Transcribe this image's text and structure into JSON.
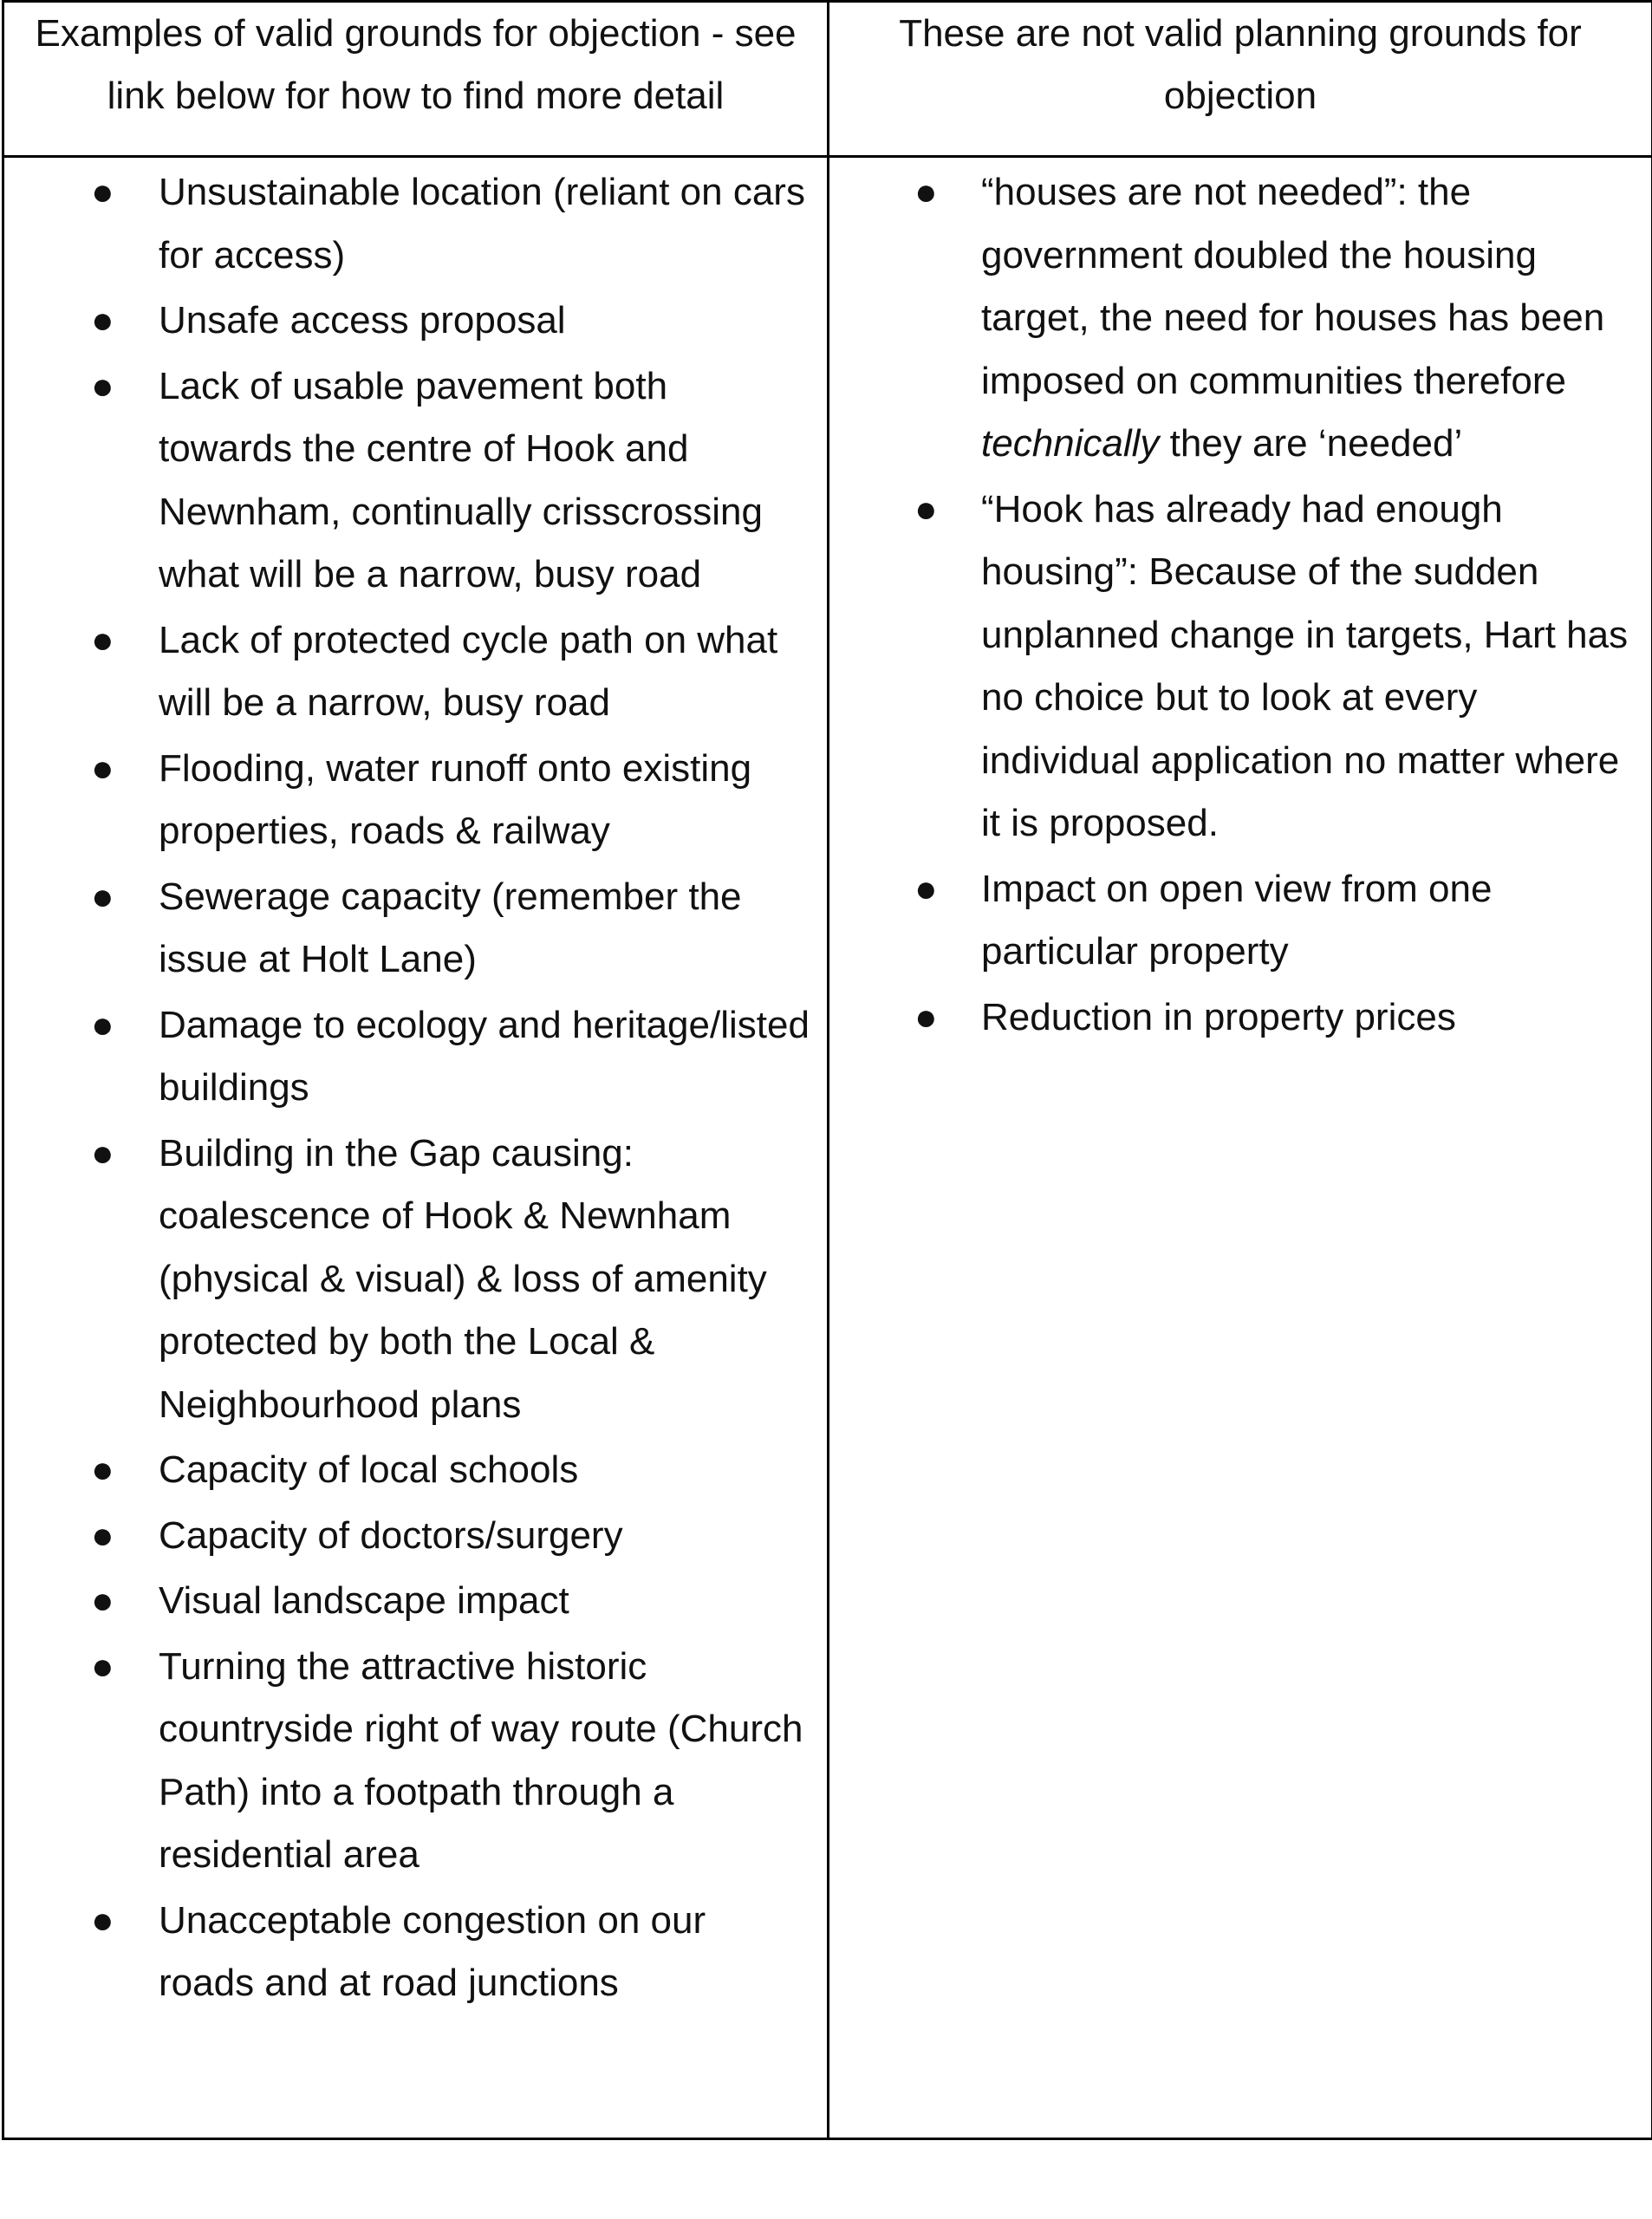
{
  "header": {
    "left": "Examples of valid grounds for objection - see link below for how to find more detail",
    "right": "These are not valid planning grounds for objection"
  },
  "bullet_glyph": "●",
  "valid_grounds": [
    "Unsustainable location (reliant on cars for access)",
    "Unsafe access proposal",
    "Lack of usable pavement both towards the centre of Hook and Newnham, continually crisscrossing what will be a narrow, busy road",
    "Lack of protected cycle path on what will be a narrow, busy road",
    "Flooding, water runoff onto existing properties, roads & railway",
    "Sewerage capacity (remember the issue at Holt Lane)",
    "Damage to ecology and heritage/listed buildings",
    "Building in the Gap causing: coalescence of Hook & Newnham (physical & visual) & loss of amenity protected by both the Local & Neighbourhood plans",
    "Capacity of local schools",
    "Capacity of doctors/surgery",
    "Visual landscape impact",
    "Turning the attractive historic countryside right of way route (Church Path) into a footpath through a residential area",
    "Unacceptable congestion on our roads and at road junctions"
  ],
  "invalid_grounds": {
    "item1_before": "“houses are not needed”: the government doubled the housing target, the need for houses has been imposed on communities therefore ",
    "item1_italic": "technically",
    "item1_after": " they are ‘needed’",
    "item2": "“Hook has already had enough housing”: Because of the sudden unplanned change in targets, Hart has no choice but to look at every individual application no matter where it is proposed.",
    "item3": "Impact on open view from one particular property",
    "item4": "Reduction in property prices"
  }
}
